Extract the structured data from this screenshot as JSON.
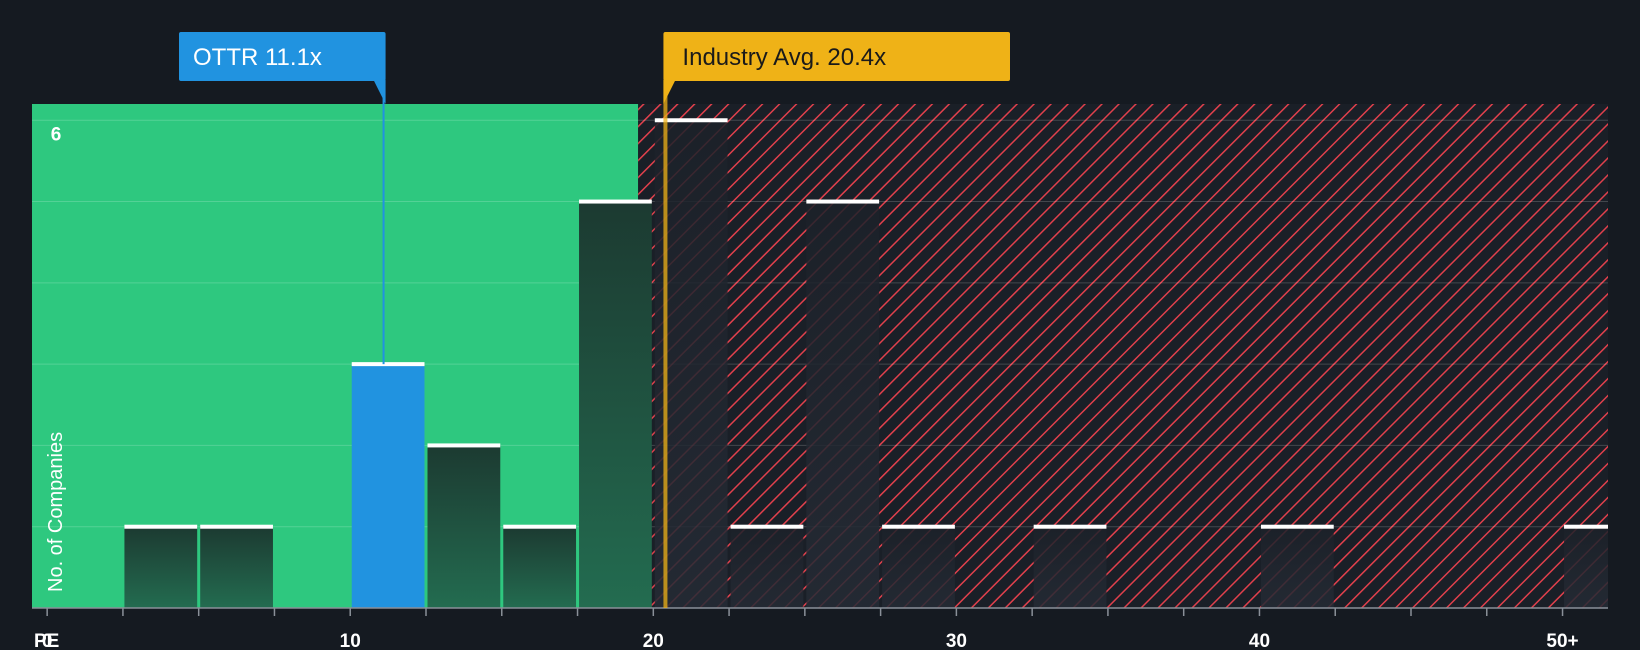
{
  "chart_data": {
    "type": "bar",
    "xlabel": "PE",
    "ylabel": "No. of Companies",
    "xlim": [
      -0.5,
      51.5
    ],
    "ylim": [
      0,
      6.2
    ],
    "x_ticks": [
      0,
      10,
      20,
      30,
      40,
      50
    ],
    "x_tick_labels": [
      "0",
      "10",
      "20",
      "30",
      "40",
      "50+"
    ],
    "y_ticks": [
      6
    ],
    "y_tick_labels": [
      "6"
    ],
    "bin_width": 2.5,
    "bins": [
      {
        "x0": 2.5,
        "count": 1
      },
      {
        "x0": 5,
        "count": 1
      },
      {
        "x0": 10,
        "count": 3,
        "highlight": true
      },
      {
        "x0": 12.5,
        "count": 2
      },
      {
        "x0": 15,
        "count": 1
      },
      {
        "x0": 17.5,
        "count": 5
      },
      {
        "x0": 20,
        "count": 6
      },
      {
        "x0": 22.5,
        "count": 1
      },
      {
        "x0": 25,
        "count": 5
      },
      {
        "x0": 27.5,
        "count": 1
      },
      {
        "x0": 32.5,
        "count": 1
      },
      {
        "x0": 40,
        "count": 1
      },
      {
        "x0": 50,
        "count": 1
      }
    ],
    "company": {
      "label": "OTTR 11.1x",
      "value": 11.1
    },
    "industry_avg": {
      "label": "Industry Avg. 20.4x",
      "value": 20.4
    },
    "green_zone_end": 19.5,
    "grid": true,
    "colors": {
      "background": "#151a21",
      "green_zone": "#2ec87f",
      "red_hatch": "#e0404c",
      "bar_dark": "#1f4a3c",
      "bar_highlight": "#2193e0",
      "company_callout": "#2193e0",
      "industry_callout": "#efb217",
      "bar_cap": "#ffffff"
    }
  }
}
